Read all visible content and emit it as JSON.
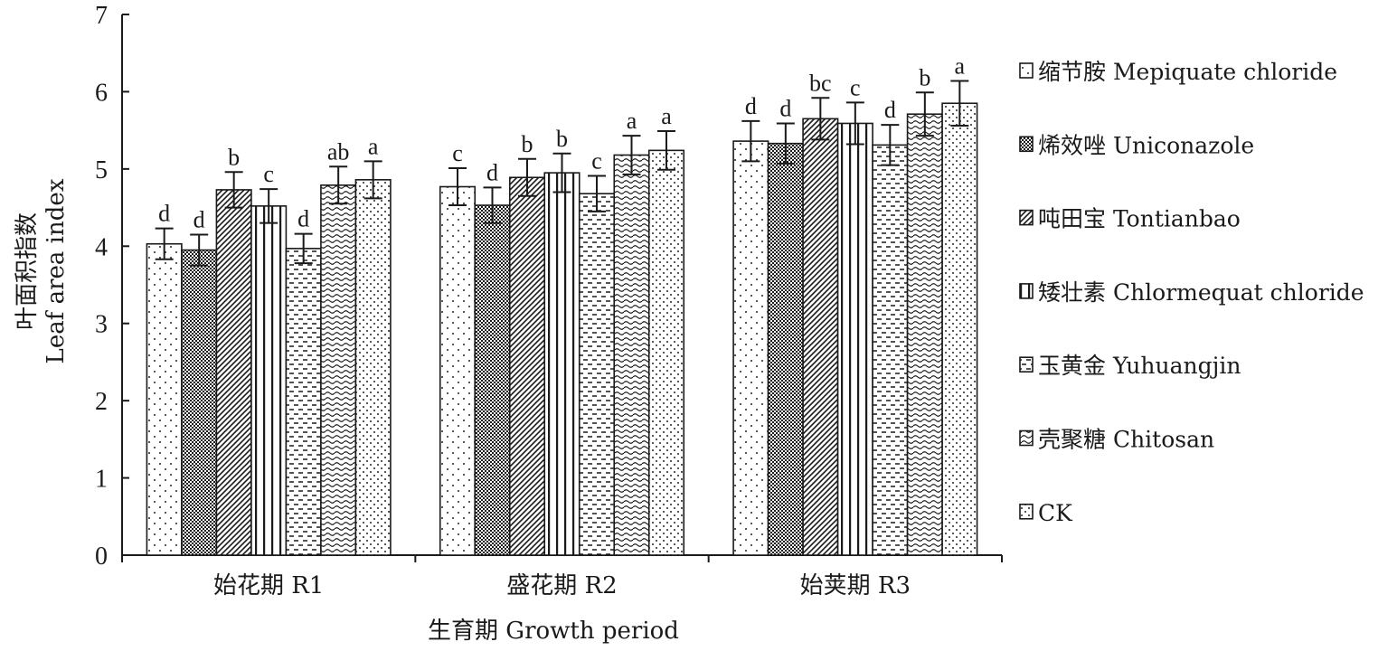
{
  "chart_data": {
    "type": "bar",
    "ylabel_cn": "叶面积指数",
    "ylabel": "Leaf area index",
    "xlabel": "生育期 Growth period",
    "ylim": [
      0,
      7
    ],
    "yticks": [
      0,
      1,
      2,
      3,
      4,
      5,
      6,
      7
    ],
    "categories": [
      "始花期 R1",
      "盛花期 R2",
      "始荚期 R3"
    ],
    "legend_position": "right",
    "series": [
      {
        "name": "缩节胺 Mepiquate chloride",
        "pattern": "dots-sparse",
        "values": [
          4.03,
          4.77,
          5.36
        ],
        "errors": [
          0.2,
          0.24,
          0.26
        ],
        "letters": [
          "d",
          "c",
          "d"
        ]
      },
      {
        "name": "烯效唑 Uniconazole",
        "pattern": "checker",
        "values": [
          3.95,
          4.53,
          5.33
        ],
        "errors": [
          0.2,
          0.23,
          0.26
        ],
        "letters": [
          "d",
          "d",
          "d"
        ]
      },
      {
        "name": "吨田宝 Tontianbao",
        "pattern": "diag-dense",
        "values": [
          4.73,
          4.89,
          5.65
        ],
        "errors": [
          0.23,
          0.24,
          0.27
        ],
        "letters": [
          "b",
          "b",
          "bc"
        ]
      },
      {
        "name": "矮壮素 Chlormequat chloride",
        "pattern": "vertical",
        "values": [
          4.52,
          4.95,
          5.59
        ],
        "errors": [
          0.22,
          0.25,
          0.27
        ],
        "letters": [
          "c",
          "b",
          "c"
        ]
      },
      {
        "name": "玉黄金 Yuhuangjin",
        "pattern": "dash-horizontal",
        "values": [
          3.97,
          4.68,
          5.31
        ],
        "errors": [
          0.19,
          0.23,
          0.26
        ],
        "letters": [
          "d",
          "c",
          "d"
        ]
      },
      {
        "name": "壳聚糖 Chitosan",
        "pattern": "wave",
        "values": [
          4.79,
          5.18,
          5.71
        ],
        "errors": [
          0.24,
          0.25,
          0.28
        ],
        "letters": [
          "ab",
          "a",
          "b"
        ]
      },
      {
        "name": "CK",
        "pattern": "dots-dense",
        "values": [
          4.86,
          5.24,
          5.85
        ],
        "errors": [
          0.24,
          0.25,
          0.29
        ],
        "letters": [
          "a",
          "a",
          "a"
        ]
      }
    ]
  }
}
